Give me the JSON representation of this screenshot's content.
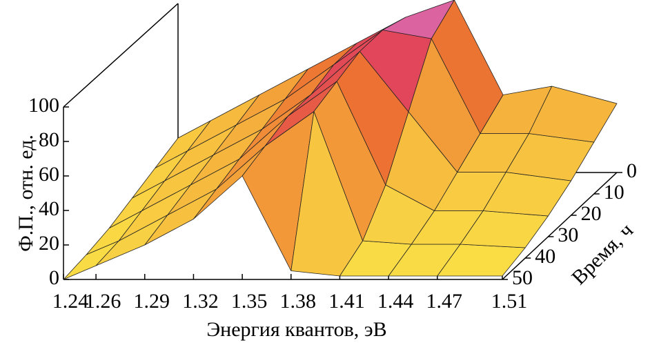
{
  "chart_data": {
    "type": "surface",
    "ylabel": "Ф.П., отн. ед.",
    "xlabel": "Энергия квантов, эВ",
    "zlabel": "Время, ч",
    "xlim": [
      1.24,
      1.51
    ],
    "xticks": [
      1.24,
      1.26,
      1.29,
      1.32,
      1.35,
      1.38,
      1.41,
      1.44,
      1.47,
      1.51
    ],
    "ylim": [
      0,
      100
    ],
    "yticks": [
      0,
      20,
      40,
      60,
      80,
      100
    ],
    "zlim": [
      0,
      50
    ],
    "zticks": [
      0,
      10,
      20,
      30,
      40,
      50
    ],
    "x": [
      1.24,
      1.26,
      1.29,
      1.32,
      1.35,
      1.38,
      1.41,
      1.44,
      1.47,
      1.51
    ],
    "z": [
      0,
      10,
      20,
      30,
      40,
      50
    ],
    "values": [
      [
        20,
        30,
        45,
        60,
        75,
        90,
        100,
        45,
        50,
        40
      ],
      [
        15,
        25,
        40,
        55,
        75,
        95,
        90,
        35,
        35,
        30
      ],
      [
        10,
        20,
        35,
        50,
        70,
        95,
        60,
        25,
        25,
        20
      ],
      [
        5,
        15,
        30,
        45,
        70,
        90,
        30,
        15,
        15,
        12
      ],
      [
        2,
        10,
        25,
        40,
        65,
        85,
        10,
        8,
        8,
        6
      ],
      [
        0,
        8,
        20,
        35,
        60,
        5,
        2,
        2,
        2,
        2
      ]
    ]
  }
}
